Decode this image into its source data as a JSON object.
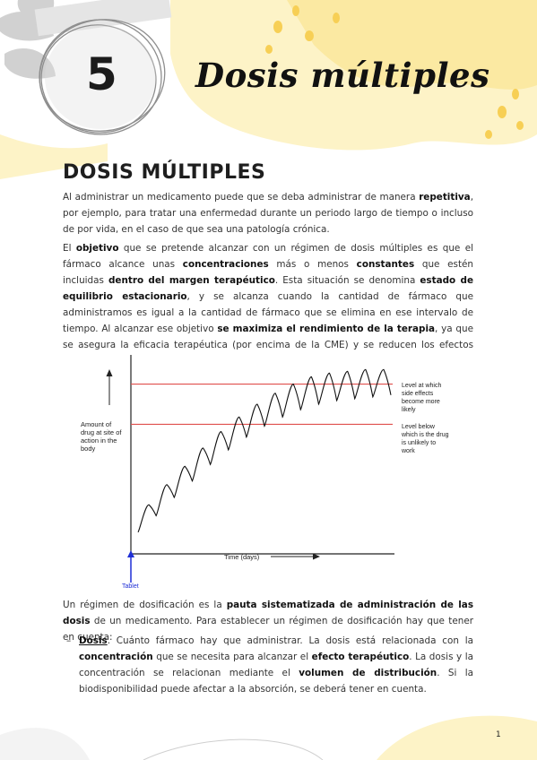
{
  "header": {
    "chapter_number": "5",
    "chapter_title": "Dosis múltiples"
  },
  "section": {
    "heading": "DOSIS MÚLTIPLES"
  },
  "paragraphs": {
    "p1": [
      {
        "t": "Al administrar un medicamento puede que se deba administrar de manera "
      },
      {
        "t": "repetitiva",
        "b": true
      },
      {
        "t": ", por ejemplo, para tratar una enfermedad durante un periodo largo de tiempo o incluso de por vida, en el caso de que sea una patología crónica."
      }
    ],
    "p2": [
      {
        "t": "El "
      },
      {
        "t": "objetivo",
        "b": true
      },
      {
        "t": " que se pretende alcanzar con un régimen de dosis múltiples es que el fármaco alcance unas "
      },
      {
        "t": "concentraciones",
        "b": true
      },
      {
        "t": " más o menos "
      },
      {
        "t": "constantes",
        "b": true
      },
      {
        "t": " que estén incluidas "
      },
      {
        "t": "dentro del margen terapéutico",
        "b": true
      },
      {
        "t": ". Esta situación se denomina "
      },
      {
        "t": "estado de equilibrio estacionario",
        "b": true
      },
      {
        "t": ", y se alcanza cuando la cantidad de fármaco que administramos es igual a la cantidad de fármaco que se elimina en ese intervalo de tiempo. Al alcanzar ese objetivo "
      },
      {
        "t": "se maximiza el rendimiento de la terapia",
        "b": true
      },
      {
        "t": ", ya que se asegura la eficacia terapéutica (por encima de la CME) y se reducen los efectos adversos (por debajo de la CMT)."
      }
    ],
    "p3": [
      {
        "t": "Un régimen de dosificación es la "
      },
      {
        "t": "pauta sistematizada de administración de las dosis",
        "b": true
      },
      {
        "t": " de un medicamento. Para establecer un régimen de dosificación hay que tener en cuenta:"
      }
    ]
  },
  "list": {
    "dash": "–",
    "item1": [
      {
        "t": "Dosis",
        "b": true,
        "u": true
      },
      {
        "t": ". Cuánto fármaco hay que administrar. La dosis está relacionada con la "
      },
      {
        "t": "concentración",
        "b": true
      },
      {
        "t": " que se necesita para alcanzar el "
      },
      {
        "t": "efecto terapéutico",
        "b": true
      },
      {
        "t": ". La dosis y la concentración se relacionan mediante el "
      },
      {
        "t": "volumen de distribución",
        "b": true
      },
      {
        "t": ". Si la biodisponibilidad puede afectar a la absorción, se deberá tener en cuenta."
      }
    ]
  },
  "figure": {
    "ylabel": [
      "Amount of",
      "drug at site of",
      "action in the",
      "body"
    ],
    "xlabel": "Time (days)",
    "tablet_label": "Tablet",
    "upper_label": [
      "Level at which",
      "side effects",
      "become more",
      "likely"
    ],
    "lower_label": [
      "Level below",
      "which is the drug",
      "is unlikely to",
      "work"
    ],
    "colors": {
      "level_lines": "#e0504d",
      "tablet": "#1f2fd6",
      "curve": "#111111"
    }
  },
  "chart_data": {
    "type": "line",
    "x": [
      0,
      0.6,
      1.0,
      1.6,
      2.0,
      2.6,
      3.0,
      3.6,
      4.0,
      4.6,
      5.0,
      5.6,
      6.0,
      6.6,
      7.0,
      7.6,
      8.0,
      8.6,
      9.0,
      9.6,
      10.0,
      10.6,
      11.0,
      11.6,
      12.0,
      12.6,
      13.0,
      13.6,
      14.0
    ],
    "series": [
      {
        "values": [
          5,
          20,
          14,
          31,
          24,
          41,
          33,
          51,
          42,
          60,
          50,
          68,
          57,
          75,
          63,
          81,
          68,
          86,
          72,
          90,
          75,
          92,
          77,
          93,
          78,
          94,
          79,
          94,
          80
        ]
      }
    ],
    "levels": {
      "upper": 86,
      "lower": 64
    },
    "ylim": [
      0,
      100
    ],
    "xlabel": "Time (days)",
    "ylabel": "Amount of drug at site of action in the body",
    "grid": false
  },
  "footer": {
    "page_number": "1"
  }
}
